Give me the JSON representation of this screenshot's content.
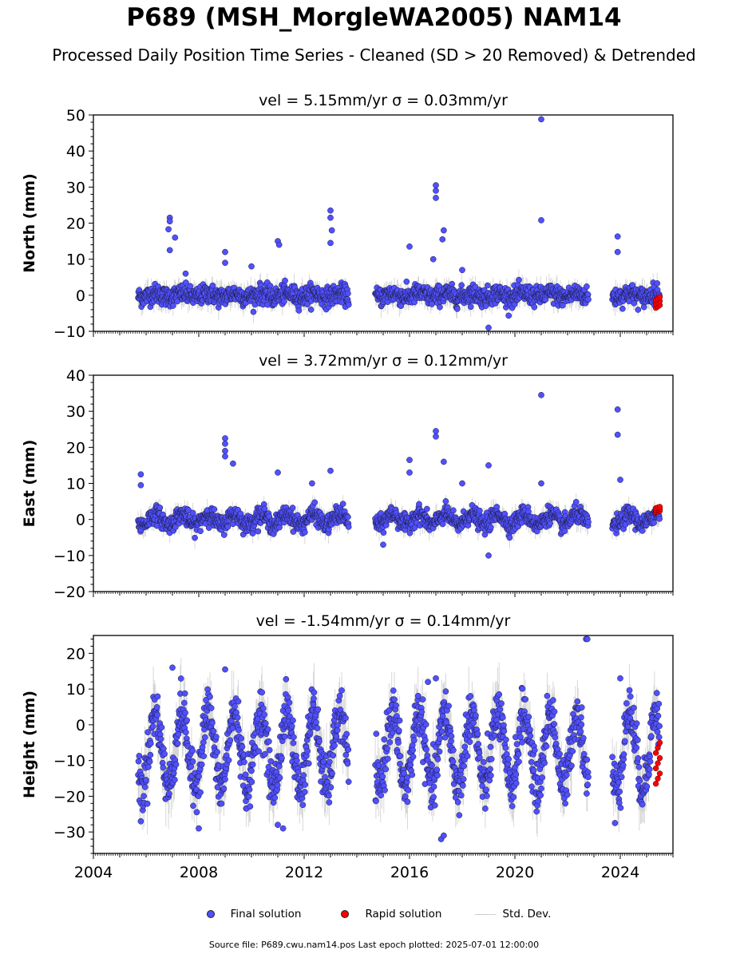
{
  "title": "P689 (MSH_MorgleWA2005) NAM14",
  "subtitle": "Processed Daily Position Time Series - Cleaned (SD > 20 Removed) & Detrended",
  "colors": {
    "final": "#5050ff",
    "rapid": "#ff0000",
    "stddev": "#cccccc",
    "edge": "#1a1a3a"
  },
  "legend": {
    "final": "Final solution",
    "rapid": "Rapid solution",
    "stddev": "Std. Dev."
  },
  "footer": "Source file: P689.cwu.nam14.pos  Last epoch plotted: 2025-07-01 12:00:00",
  "chart_data": [
    {
      "type": "scatter",
      "title": "vel = 5.15mm/yr   σ = 0.03mm/yr",
      "ylabel": "North (mm)",
      "xlim": [
        2004.0,
        2026.0
      ],
      "ylim": [
        -10,
        50
      ],
      "yticks": [
        -10,
        0,
        10,
        20,
        30,
        40,
        50
      ],
      "xticks": [
        2004,
        2008,
        2012,
        2016,
        2020,
        2024
      ],
      "segments": [
        [
          2005.7,
          2013.7
        ],
        [
          2014.7,
          2022.8
        ],
        [
          2023.7,
          2025.5
        ]
      ],
      "series": [
        {
          "name": "Final solution",
          "noise_sd": 1.3,
          "seasonal_amp": 0.5,
          "trend": 0.0,
          "outliers": [
            [
              2006.9,
              21.5
            ],
            [
              2006.9,
              20.5
            ],
            [
              2006.85,
              18.3
            ],
            [
              2006.9,
              12.5
            ],
            [
              2007.1,
              16
            ],
            [
              2009.0,
              12
            ],
            [
              2009.0,
              9
            ],
            [
              2011.0,
              15
            ],
            [
              2011.05,
              14
            ],
            [
              2013.0,
              23.5
            ],
            [
              2013.0,
              21.5
            ],
            [
              2013.05,
              18
            ],
            [
              2013.0,
              14.5
            ],
            [
              2017.0,
              30.5
            ],
            [
              2017.0,
              29
            ],
            [
              2017.0,
              27
            ],
            [
              2017.3,
              18
            ],
            [
              2017.25,
              15.5
            ],
            [
              2016.0,
              13.5
            ],
            [
              2016.9,
              10
            ],
            [
              2018.0,
              7
            ],
            [
              2021.0,
              48.8
            ],
            [
              2021.0,
              20.8
            ],
            [
              2023.9,
              16.3
            ],
            [
              2023.9,
              12
            ],
            [
              2010.0,
              8
            ],
            [
              2007.5,
              6
            ],
            [
              2019.0,
              -9
            ]
          ]
        }
      ],
      "rapid": {
        "x_range": [
          2025.35,
          2025.5
        ],
        "y_range": [
          -3.5,
          -0.5
        ]
      }
    },
    {
      "type": "scatter",
      "title": "vel = 3.72mm/yr   σ = 0.12mm/yr",
      "ylabel": "East (mm)",
      "xlim": [
        2004.0,
        2026.0
      ],
      "ylim": [
        -20,
        40
      ],
      "yticks": [
        -20,
        -10,
        0,
        10,
        20,
        30,
        40
      ],
      "xticks": [
        2004,
        2008,
        2012,
        2016,
        2020,
        2024
      ],
      "segments": [
        [
          2005.7,
          2013.7
        ],
        [
          2014.7,
          2022.8
        ],
        [
          2023.7,
          2025.5
        ]
      ],
      "series": [
        {
          "name": "Final solution",
          "noise_sd": 1.2,
          "seasonal_amp": 1.5,
          "trend": 0.0,
          "outliers": [
            [
              2005.8,
              12.5
            ],
            [
              2005.8,
              9.5
            ],
            [
              2009.0,
              22.5
            ],
            [
              2009.0,
              21
            ],
            [
              2009.0,
              19
            ],
            [
              2009.0,
              17.5
            ],
            [
              2009.3,
              15.5
            ],
            [
              2011.0,
              13
            ],
            [
              2013.0,
              13.5
            ],
            [
              2012.3,
              10
            ],
            [
              2016.0,
              16.5
            ],
            [
              2016.0,
              13
            ],
            [
              2017.0,
              24.5
            ],
            [
              2017.0,
              23
            ],
            [
              2017.3,
              16
            ],
            [
              2018.0,
              10
            ],
            [
              2019.0,
              15
            ],
            [
              2021.0,
              34.5
            ],
            [
              2021.0,
              10
            ],
            [
              2023.9,
              30.5
            ],
            [
              2023.9,
              23.5
            ],
            [
              2024.0,
              11
            ],
            [
              2015.0,
              -7
            ],
            [
              2019.0,
              -10
            ]
          ]
        }
      ],
      "rapid": {
        "x_range": [
          2025.35,
          2025.5
        ],
        "y_range": [
          2.0,
          3.5
        ]
      }
    },
    {
      "type": "scatter",
      "title": "vel = -1.54mm/yr   σ = 0.14mm/yr",
      "ylabel": "Height (mm)",
      "xlim": [
        2004.0,
        2026.0
      ],
      "ylim": [
        -36,
        25
      ],
      "yticks": [
        -30,
        -20,
        -10,
        0,
        10,
        20
      ],
      "xticks": [
        2004,
        2008,
        2012,
        2016,
        2020,
        2024
      ],
      "segments": [
        [
          2005.7,
          2013.7
        ],
        [
          2014.7,
          2022.8
        ],
        [
          2023.7,
          2025.5
        ]
      ],
      "series": [
        {
          "name": "Final solution",
          "noise_sd": 3.5,
          "seasonal_amp": 10.5,
          "trend": -7.0,
          "outliers": [
            [
              2005.8,
              -27
            ],
            [
              2007.0,
              16
            ],
            [
              2008.0,
              -29
            ],
            [
              2009.0,
              15.5
            ],
            [
              2011.0,
              -28
            ],
            [
              2011.2,
              -29
            ],
            [
              2017.2,
              -32
            ],
            [
              2017.3,
              -31
            ],
            [
              2022.7,
              24
            ],
            [
              2022.75,
              24
            ],
            [
              2023.8,
              -27.5
            ],
            [
              2024.0,
              13
            ],
            [
              2016.7,
              12
            ],
            [
              2017.0,
              13
            ]
          ]
        }
      ],
      "rapid": {
        "x_range": [
          2025.35,
          2025.5
        ],
        "y_range": [
          -16.5,
          -5.0
        ]
      }
    }
  ]
}
